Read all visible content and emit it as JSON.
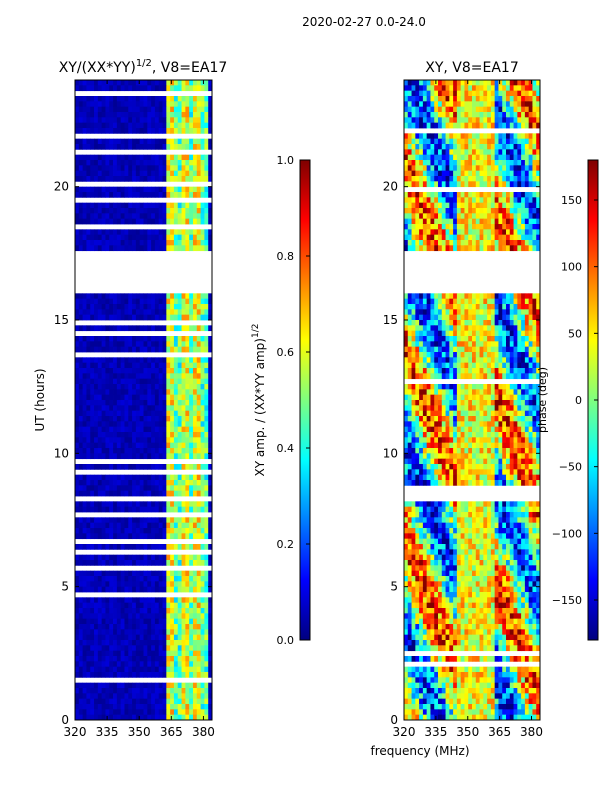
{
  "figure": {
    "suptitle": "2020-02-27 0.0-24.0",
    "xlabel_shared": "frequency (MHz)"
  },
  "colors": {
    "jet": [
      "#00007f",
      "#0000ff",
      "#007fff",
      "#00ffff",
      "#7fff7f",
      "#ffff00",
      "#ff7f00",
      "#ff0000",
      "#7f0000"
    ],
    "gap": "#ffffff"
  },
  "chart_data": [
    {
      "type": "heatmap",
      "title_main": "XY/(XX*YY)",
      "title_sup": "1/2",
      "title_tail": ", V8=EA17",
      "xlabel": "frequency (MHz)",
      "ylabel": "UT (hours)",
      "xlim": [
        320,
        384
      ],
      "ylim": [
        0,
        24
      ],
      "xticks": [
        "320",
        "335",
        "350",
        "365",
        "380"
      ],
      "xtick_values": [
        320,
        335,
        350,
        365,
        380
      ],
      "yticks": [
        "0",
        "5",
        "10",
        "15",
        "20"
      ],
      "ytick_values": [
        0,
        5,
        10,
        15,
        20
      ],
      "data_gap_hours": [
        17.6,
        16.0
      ],
      "colorbar": {
        "label_main": "XY amp. / (XX*YY amp)",
        "label_sup": "1/2",
        "range": [
          0.0,
          1.0
        ],
        "ticks": [
          "0.0",
          "0.2",
          "0.4",
          "0.6",
          "0.8",
          "1.0"
        ],
        "tick_values": [
          0.0,
          0.2,
          0.4,
          0.6,
          0.8,
          1.0
        ]
      }
    },
    {
      "type": "heatmap",
      "title": "XY, V8=EA17",
      "xlabel": "frequency (MHz)",
      "ylabel": "",
      "xlim": [
        320,
        384
      ],
      "ylim": [
        0,
        24
      ],
      "xticks": [
        "320",
        "335",
        "350",
        "365",
        "380"
      ],
      "xtick_values": [
        320,
        335,
        350,
        365,
        380
      ],
      "yticks": [
        "0",
        "5",
        "10",
        "15",
        "20"
      ],
      "ytick_values": [
        0,
        5,
        10,
        15,
        20
      ],
      "data_gap_hours": [
        17.6,
        16.0
      ],
      "colorbar": {
        "label": "phase (deg)",
        "range": [
          -180,
          180
        ],
        "ticks": [
          "−150",
          "−100",
          "−50",
          "0",
          "50",
          "100",
          "150"
        ],
        "tick_values": [
          -150,
          -100,
          -50,
          0,
          50,
          100,
          150
        ]
      }
    }
  ]
}
